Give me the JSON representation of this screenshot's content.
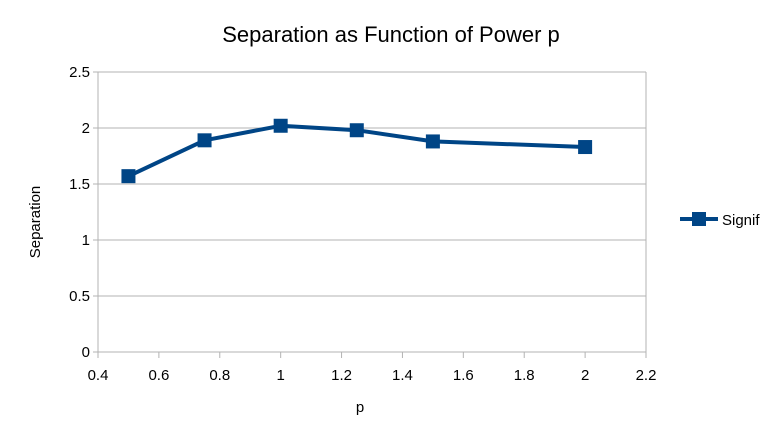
{
  "chart_data": {
    "type": "line",
    "title": "Separation as Function of Power p",
    "xlabel": "p",
    "ylabel": "Separation",
    "xlim": [
      0.4,
      2.2
    ],
    "ylim": [
      0,
      2.5
    ],
    "x_ticks": [
      "0.4",
      "0.6",
      "0.8",
      "1",
      "1.2",
      "1.4",
      "1.6",
      "1.8",
      "2",
      "2.2"
    ],
    "y_ticks": [
      "0",
      "0.5",
      "1",
      "1.5",
      "2",
      "2.5"
    ],
    "grid": "horizontal",
    "legend_position": "right",
    "series": [
      {
        "name": "Signif",
        "color": "#004586",
        "x": [
          0.5,
          0.75,
          1,
          1.25,
          1.5,
          2
        ],
        "y": [
          1.57,
          1.89,
          2.02,
          1.98,
          1.88,
          1.83
        ]
      }
    ]
  }
}
